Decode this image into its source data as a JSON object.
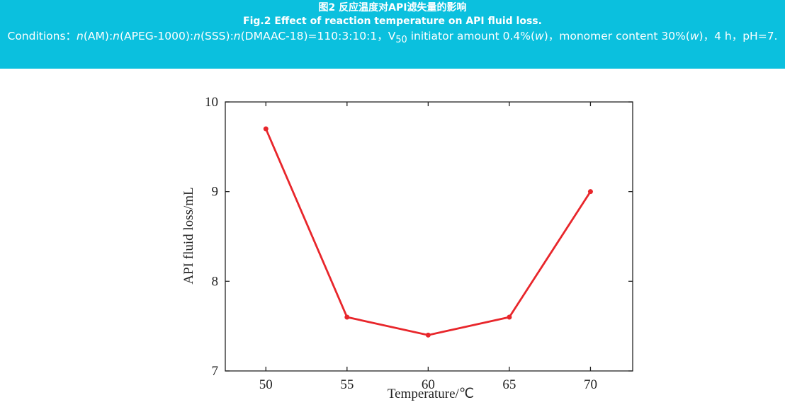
{
  "header": {
    "title_cn": "图2 反应温度对API滤失量的影响",
    "title_en": "Fig.2 Effect of reaction temperature on API fluid loss.",
    "conditions": [
      "Conditions：",
      "n",
      "(AM):",
      "n",
      "(APEG-1000):",
      "n",
      "(SSS):",
      "n",
      "(DMAAC-18)=110:3:10:1，V",
      "50",
      " initiator amount 0.4%(",
      "w",
      ")，monomer content 30%(",
      "w",
      ")，4 h，pH=7."
    ]
  },
  "chart_data": {
    "type": "line",
    "x_label": "Temperature/℃",
    "y_label": "API fluid loss/mL",
    "x": [
      50,
      55,
      60,
      65,
      70
    ],
    "series": [
      {
        "name": "API fluid loss",
        "color": "#e8262b",
        "values": [
          9.7,
          7.6,
          7.4,
          7.6,
          9.0
        ]
      }
    ],
    "xlim": [
      47.5,
      72.6
    ],
    "xticks": [
      50,
      55,
      60,
      65,
      70
    ],
    "ylim": [
      7,
      10
    ],
    "yticks": [
      7,
      8,
      9,
      10
    ],
    "grid": false
  }
}
